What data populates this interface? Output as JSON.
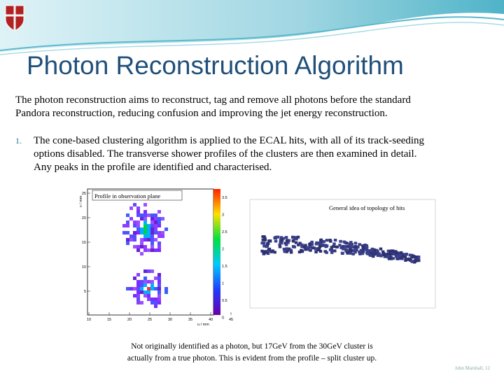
{
  "header": {
    "title": "Photon Reconstruction Algorithm"
  },
  "intro": [
    "The photon reconstruction aims to reconstruct, tag and remove all photons before the standard",
    "Pandora reconstruction, reducing confusion and improving the jet energy reconstruction."
  ],
  "list": [
    {
      "marker": "1.",
      "lines": [
        "The cone-based clustering algorithm is applied to the ECAL hits, with all of its track-seeding",
        "options disabled. The transverse shower profiles of the clusters are then examined in detail.",
        "Any peaks in the profile are identified and characterised."
      ]
    }
  ],
  "figures": {
    "left": {
      "label": "Profile in observation plane",
      "y_axis": "v / mm",
      "x_axis": "u / mm",
      "yticks": [
        "25",
        "20",
        "15",
        "10",
        "5"
      ],
      "xticks": [
        "10",
        "15",
        "20",
        "25",
        "30",
        "35",
        "40",
        "45"
      ],
      "colorbar": [
        "3.5",
        "3",
        "2.5",
        "2",
        "1.5",
        "1",
        "0.5",
        "0"
      ]
    },
    "right": {
      "label": "General idea of topology of hits"
    }
  },
  "caption": [
    "Not originally identified as a photon, but 17GeV from the 30GeV cluster is",
    "actually from a true photon. This is evident from the profile – split cluster up."
  ],
  "footer": "John Marshall, 12"
}
